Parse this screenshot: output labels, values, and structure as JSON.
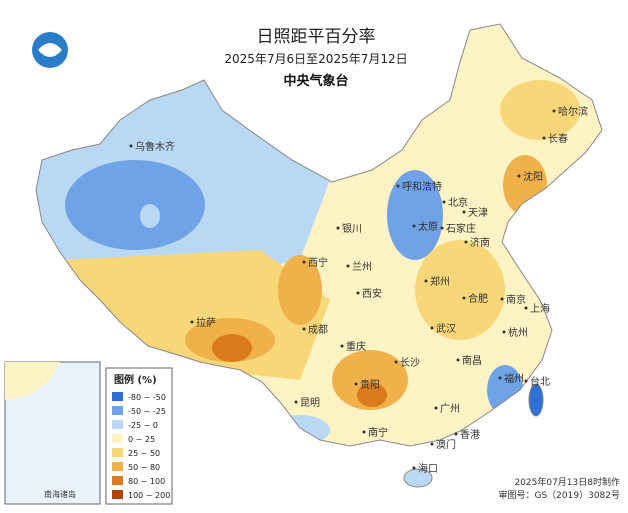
{
  "header": {
    "title": "日照距平百分率",
    "subtitle": "2025年7月6日至2025年7月12日",
    "agency": "中央气象台"
  },
  "legend": {
    "title": "图例 (%)",
    "items": [
      {
        "label": "-80 ~ -50",
        "color": "#2f6fd6"
      },
      {
        "label": "-50 ~ -25",
        "color": "#6fa2e6"
      },
      {
        "label": "-25 ~ 0",
        "color": "#b9d8f3"
      },
      {
        "label": "0 ~ 25",
        "color": "#fdf3c4"
      },
      {
        "label": "25 ~ 50",
        "color": "#f8d778"
      },
      {
        "label": "50 ~ 80",
        "color": "#f0b04a"
      },
      {
        "label": "80 ~ 100",
        "color": "#d97a1e"
      },
      {
        "label": "100 ~ 200",
        "color": "#b0430f"
      }
    ]
  },
  "cities": [
    "乌鲁木齐",
    "哈尔滨",
    "长春",
    "沈阳",
    "呼和浩特",
    "北京",
    "天津",
    "石家庄",
    "太原",
    "济南",
    "银川",
    "西宁",
    "兰州",
    "郑州",
    "西安",
    "合肥",
    "南京",
    "上海",
    "拉萨",
    "成都",
    "武汉",
    "杭州",
    "重庆",
    "长沙",
    "南昌",
    "福州",
    "台北",
    "贵阳",
    "昆明",
    "广州",
    "南宁",
    "香港",
    "澳门",
    "海口"
  ],
  "inset": {
    "label": "南海诸岛"
  },
  "footer": {
    "made": "2025年07月13日8时制作",
    "approval": "审图号：GS（2019）3082号"
  }
}
